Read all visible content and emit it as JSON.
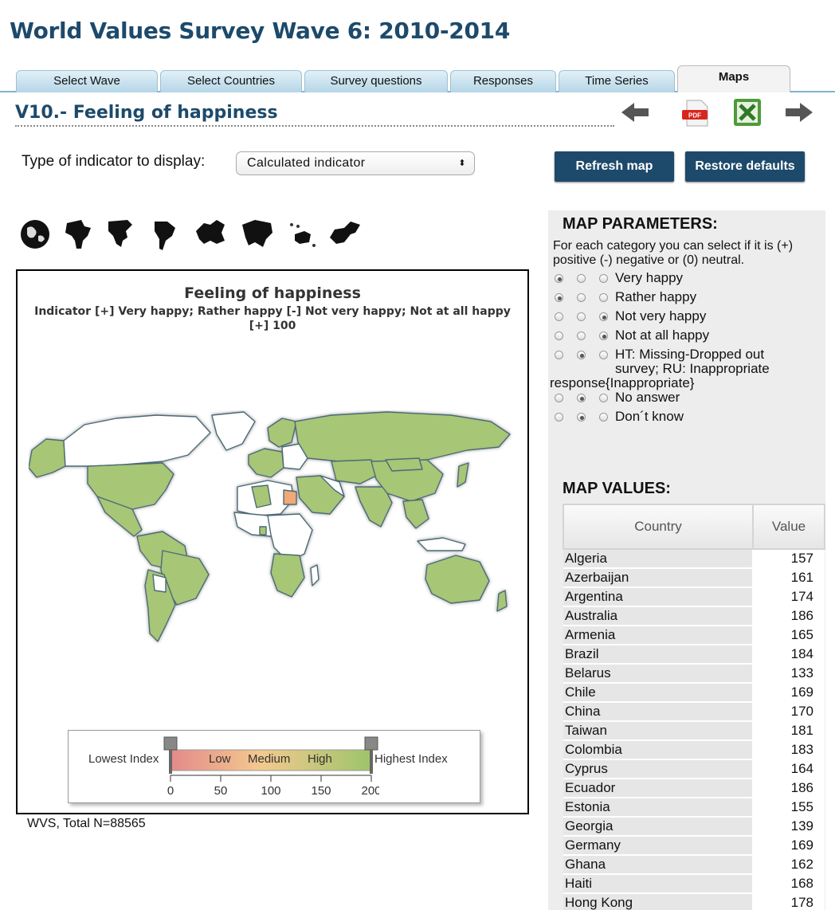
{
  "page_title": "World Values Survey Wave 6: 2010-2014",
  "tabs": [
    {
      "label": "Select Wave"
    },
    {
      "label": "Select Countries"
    },
    {
      "label": "Survey questions"
    },
    {
      "label": "Responses"
    },
    {
      "label": "Time Series"
    },
    {
      "label": "Maps",
      "active": true
    }
  ],
  "question_title": "V10.- Feeling of happiness",
  "nav_icons": [
    "arrow-left-icon",
    "pdf-icon",
    "excel-icon",
    "arrow-right-icon"
  ],
  "pdf_icon_text": "PDF",
  "indicator": {
    "label": "Type of indicator to display:",
    "selected": "Calculated indicator"
  },
  "buttons": {
    "refresh": "Refresh map",
    "restore": "Restore defaults"
  },
  "region_icons": [
    "globe-icon",
    "africa-icon",
    "north-america-icon",
    "south-america-icon",
    "europe-icon",
    "asia-icon",
    "oceania-icon",
    "middle-east-icon"
  ],
  "map": {
    "title": "Feeling of happiness",
    "subtitle": "Indicator [+] Very happy; Rather happy [-] Not very happy; Not at all happy [+] 100",
    "legend": {
      "low_label": "Lowest Index",
      "high_label": "Highest Index",
      "bands": [
        "Low",
        "Medium",
        "High"
      ],
      "ticks": [
        "0",
        "50",
        "100",
        "150",
        "200"
      ],
      "colors": [
        "#e48a8a",
        "#f3c98f",
        "#9dc46a"
      ]
    },
    "colors": {
      "high": "#a7c676",
      "low": "#f2a977",
      "no_data": "#ffffff",
      "border": "#4c6a78"
    }
  },
  "total_n": "WVS, Total N=88565",
  "params": {
    "heading": "MAP PARAMETERS:",
    "description": "For each category you can select if it is (+) positive (-) negative or (0) neutral.",
    "rows": [
      {
        "label": "Very happy",
        "selected": 0
      },
      {
        "label": "Rather happy",
        "selected": 0
      },
      {
        "label": "Not very happy",
        "selected": 2
      },
      {
        "label": "Not at all happy",
        "selected": 2
      },
      {
        "label_line1": "HT: Missing-Dropped out",
        "label_line2": "survey; RU: Inappropriate",
        "label_line3": "response{Inappropriate}",
        "selected": 1
      },
      {
        "label": "No answer",
        "selected": 1
      },
      {
        "label": "Don´t know",
        "selected": 1
      }
    ]
  },
  "values": {
    "heading": "MAP VALUES:",
    "columns": [
      "Country",
      "Value"
    ],
    "rows": [
      {
        "country": "Algeria",
        "value": "157"
      },
      {
        "country": "Azerbaijan",
        "value": "161"
      },
      {
        "country": "Argentina",
        "value": "174"
      },
      {
        "country": "Australia",
        "value": "186"
      },
      {
        "country": "Armenia",
        "value": "165"
      },
      {
        "country": "Brazil",
        "value": "184"
      },
      {
        "country": "Belarus",
        "value": "133"
      },
      {
        "country": "Chile",
        "value": "169"
      },
      {
        "country": "China",
        "value": "170"
      },
      {
        "country": "Taiwan",
        "value": "181"
      },
      {
        "country": "Colombia",
        "value": "183"
      },
      {
        "country": "Cyprus",
        "value": "164"
      },
      {
        "country": "Ecuador",
        "value": "186"
      },
      {
        "country": "Estonia",
        "value": "155"
      },
      {
        "country": "Georgia",
        "value": "139"
      },
      {
        "country": "Germany",
        "value": "169"
      },
      {
        "country": "Ghana",
        "value": "162"
      },
      {
        "country": "Haiti",
        "value": "168"
      },
      {
        "country": "Hong Kong",
        "value": "178"
      }
    ]
  }
}
